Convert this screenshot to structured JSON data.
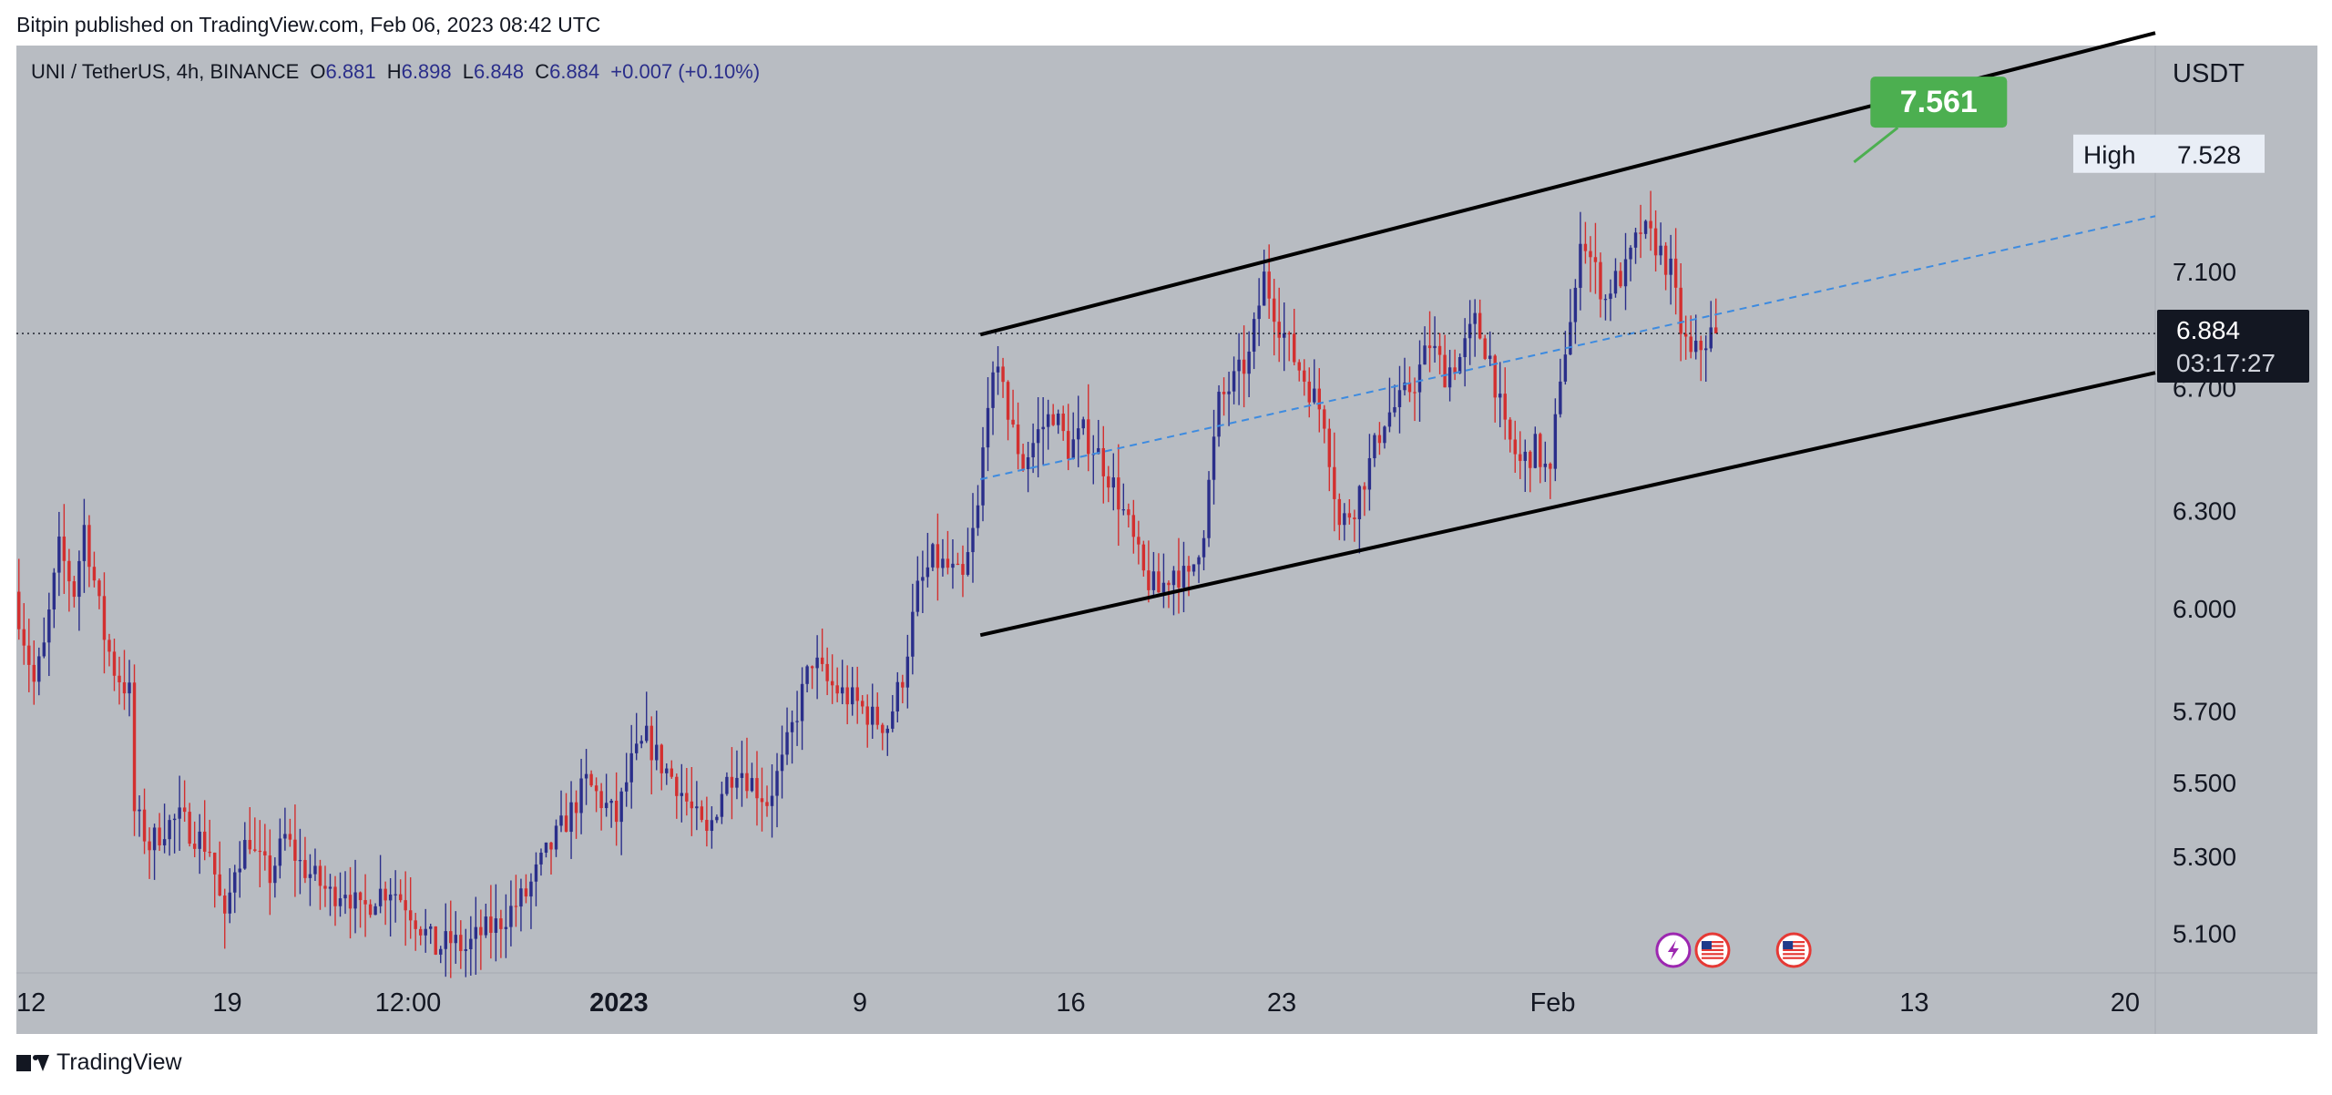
{
  "publisher_line": "Bitpin published on TradingView.com, Feb 06, 2023 08:42 UTC",
  "footer_brand": "TradingView",
  "legend": {
    "symbol": "UNI / TetherUS, 4h, BINANCE",
    "o_label": "O",
    "o_value": "6.881",
    "h_label": "H",
    "h_value": "6.898",
    "l_label": "L",
    "l_value": "6.848",
    "c_label": "C",
    "c_value": "6.884",
    "change": "+0.007 (+0.10%)"
  },
  "price_axis": {
    "currency": "USDT",
    "high_label": "High",
    "high_value": "7.528",
    "last_price": "6.884",
    "countdown": "03:17:27"
  },
  "target_label": "7.561",
  "colors": {
    "background": "#b8bcc2",
    "up": "#2a2e8a",
    "down": "#d32f2f",
    "channel": "#000000",
    "midline": "#3d8be0",
    "target_badge": "#4caf50",
    "last_price_box": "#131722"
  },
  "chart_data": {
    "type": "candlestick",
    "timeframe": "4h",
    "y_ticks": [
      5.1,
      5.3,
      5.5,
      5.7,
      6.0,
      6.3,
      6.7,
      7.1
    ],
    "y_tick_labels": [
      "5.100",
      "5.300",
      "5.500",
      "5.700",
      "6.000",
      "6.300",
      "6.700",
      "7.100"
    ],
    "y_scale": "log",
    "ylim": [
      5.0,
      7.95
    ],
    "x_ticks": [
      "12",
      "19",
      "12:00",
      "2023",
      "9",
      "16",
      "23",
      "Feb",
      "13",
      "20"
    ],
    "x_tick_dates": [
      "2022-12-12",
      "2022-12-19",
      "2022-12-25",
      "2023-01-01",
      "2023-01-09",
      "2023-01-16",
      "2023-01-23",
      "2023-02-01",
      "2023-02-13",
      "2023-02-20"
    ],
    "xlim": [
      "2022-12-12",
      "2023-02-21"
    ],
    "last_price": 6.884,
    "high": 7.528,
    "target": 7.561,
    "path": [
      [
        "2022-12-12",
        6.05
      ],
      [
        "2022-12-12T16:00",
        5.78
      ],
      [
        "2022-12-13",
        5.88
      ],
      [
        "2022-12-13T12:00",
        6.18
      ],
      [
        "2022-12-14",
        6.05
      ],
      [
        "2022-12-14T08:00",
        6.25
      ],
      [
        "2022-12-14T20:00",
        6.0
      ],
      [
        "2022-12-15",
        5.92
      ],
      [
        "2022-12-15T08:00",
        5.82
      ],
      [
        "2022-12-15T20:00",
        5.75
      ],
      [
        "2022-12-16",
        5.42
      ],
      [
        "2022-12-16T12:00",
        5.33
      ],
      [
        "2022-12-17",
        5.38
      ],
      [
        "2022-12-17T12:00",
        5.4
      ],
      [
        "2022-12-18",
        5.36
      ],
      [
        "2022-12-18T12:00",
        5.32
      ],
      [
        "2022-12-19",
        5.12
      ],
      [
        "2022-12-19T08:00",
        5.28
      ],
      [
        "2022-12-19T20:00",
        5.35
      ],
      [
        "2022-12-20",
        5.3
      ],
      [
        "2022-12-20T12:00",
        5.25
      ],
      [
        "2022-12-21",
        5.35
      ],
      [
        "2022-12-21T12:00",
        5.28
      ],
      [
        "2022-12-22",
        5.24
      ],
      [
        "2022-12-22T12:00",
        5.2
      ],
      [
        "2022-12-23",
        5.22
      ],
      [
        "2022-12-23T12:00",
        5.15
      ],
      [
        "2022-12-24",
        5.2
      ],
      [
        "2022-12-24T12:00",
        5.22
      ],
      [
        "2022-12-25",
        5.18
      ],
      [
        "2022-12-25T12:00",
        5.12
      ],
      [
        "2022-12-26",
        5.06
      ],
      [
        "2022-12-26T12:00",
        5.08
      ],
      [
        "2022-12-27",
        5.06
      ],
      [
        "2022-12-27T12:00",
        5.1
      ],
      [
        "2022-12-28",
        5.12
      ],
      [
        "2022-12-28T12:00",
        5.16
      ],
      [
        "2022-12-29",
        5.2
      ],
      [
        "2022-12-29T12:00",
        5.28
      ],
      [
        "2022-12-30",
        5.35
      ],
      [
        "2022-12-30T12:00",
        5.42
      ],
      [
        "2022-12-31",
        5.5
      ],
      [
        "2022-12-31T12:00",
        5.45
      ],
      [
        "2023-01-01",
        5.4
      ],
      [
        "2023-01-01T12:00",
        5.55
      ],
      [
        "2023-01-02",
        5.62
      ],
      [
        "2023-01-02T12:00",
        5.55
      ],
      [
        "2023-01-03",
        5.5
      ],
      [
        "2023-01-03T12:00",
        5.42
      ],
      [
        "2023-01-04",
        5.35
      ],
      [
        "2023-01-04T12:00",
        5.48
      ],
      [
        "2023-01-05",
        5.55
      ],
      [
        "2023-01-05T12:00",
        5.5
      ],
      [
        "2023-01-06",
        5.45
      ],
      [
        "2023-01-06T12:00",
        5.55
      ],
      [
        "2023-01-07",
        5.7
      ],
      [
        "2023-01-07T12:00",
        5.85
      ],
      [
        "2023-01-08",
        5.78
      ],
      [
        "2023-01-08T12:00",
        5.75
      ],
      [
        "2023-01-09",
        5.72
      ],
      [
        "2023-01-09T12:00",
        5.68
      ],
      [
        "2023-01-10",
        5.66
      ],
      [
        "2023-01-10T12:00",
        5.8
      ],
      [
        "2023-01-11",
        6.05
      ],
      [
        "2023-01-11T12:00",
        6.15
      ],
      [
        "2023-01-12",
        6.12
      ],
      [
        "2023-01-12T12:00",
        6.08
      ],
      [
        "2023-01-13",
        6.3
      ],
      [
        "2023-01-13T08:00",
        6.68
      ],
      [
        "2023-01-13T20:00",
        6.75
      ],
      [
        "2023-01-14",
        6.6
      ],
      [
        "2023-01-14T12:00",
        6.45
      ],
      [
        "2023-01-15",
        6.55
      ],
      [
        "2023-01-15T12:00",
        6.62
      ],
      [
        "2023-01-16",
        6.5
      ],
      [
        "2023-01-16T12:00",
        6.55
      ],
      [
        "2023-01-17",
        6.48
      ],
      [
        "2023-01-17T12:00",
        6.38
      ],
      [
        "2023-01-18",
        6.25
      ],
      [
        "2023-01-18T12:00",
        6.1
      ],
      [
        "2023-01-19",
        6.05
      ],
      [
        "2023-01-19T12:00",
        6.12
      ],
      [
        "2023-01-20",
        6.08
      ],
      [
        "2023-01-20T12:00",
        6.25
      ],
      [
        "2023-01-21",
        6.65
      ],
      [
        "2023-01-21T12:00",
        6.72
      ],
      [
        "2023-01-22",
        6.8
      ],
      [
        "2023-01-22T12:00",
        7.08
      ],
      [
        "2023-01-23",
        6.92
      ],
      [
        "2023-01-23T12:00",
        6.8
      ],
      [
        "2023-01-24",
        6.7
      ],
      [
        "2023-01-24T12:00",
        6.6
      ],
      [
        "2023-01-25",
        6.25
      ],
      [
        "2023-01-25T12:00",
        6.32
      ],
      [
        "2023-01-26",
        6.45
      ],
      [
        "2023-01-26T12:00",
        6.6
      ],
      [
        "2023-01-27",
        6.65
      ],
      [
        "2023-01-27T12:00",
        6.72
      ],
      [
        "2023-01-28",
        6.85
      ],
      [
        "2023-01-28T12:00",
        6.75
      ],
      [
        "2023-01-29",
        6.8
      ],
      [
        "2023-01-29T12:00",
        6.92
      ],
      [
        "2023-01-30",
        6.8
      ],
      [
        "2023-01-30T12:00",
        6.55
      ],
      [
        "2023-01-31",
        6.45
      ],
      [
        "2023-01-31T12:00",
        6.5
      ],
      [
        "2023-02-01",
        6.4
      ],
      [
        "2023-02-01T08:00",
        6.75
      ],
      [
        "2023-02-01T20:00",
        7.0
      ],
      [
        "2023-02-02",
        7.25
      ],
      [
        "2023-02-02T08:00",
        7.15
      ],
      [
        "2023-02-02T20:00",
        7.0
      ],
      [
        "2023-02-03",
        7.05
      ],
      [
        "2023-02-03T12:00",
        7.1
      ],
      [
        "2023-02-04",
        7.25
      ],
      [
        "2023-02-04T12:00",
        7.2
      ],
      [
        "2023-02-05",
        7.1
      ],
      [
        "2023-02-05T08:00",
        6.9
      ],
      [
        "2023-02-05T16:00",
        6.8
      ],
      [
        "2023-02-06",
        6.84
      ],
      [
        "2023-02-06T08:00",
        6.884
      ]
    ],
    "channel_upper": {
      "start": [
        "2023-01-13",
        6.88
      ],
      "end": [
        "2023-02-21",
        8.0
      ]
    },
    "channel_lower": {
      "start": [
        "2023-01-13",
        5.92
      ],
      "end": [
        "2023-02-21",
        6.75
      ]
    },
    "channel_mid": {
      "start": [
        "2023-01-13",
        6.4
      ],
      "end": [
        "2023-02-21",
        7.3
      ]
    },
    "target_pointer": {
      "at": [
        "2023-02-11",
        7.5
      ]
    },
    "event_icons": [
      {
        "date": "2023-02-05",
        "name": "lightning-icon"
      },
      {
        "date": "2023-02-06",
        "name": "us-flag-icon"
      },
      {
        "date": "2023-02-09",
        "name": "us-flag-icon"
      }
    ]
  }
}
